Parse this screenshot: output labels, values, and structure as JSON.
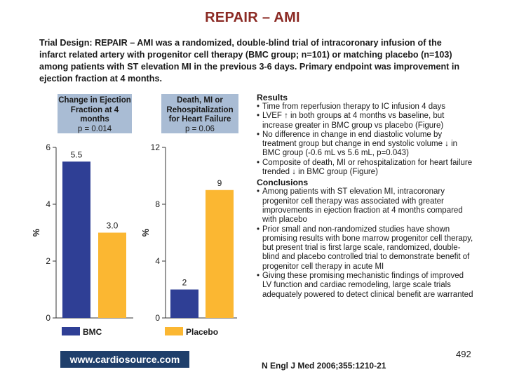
{
  "title": "REPAIR – AMI",
  "trial_design": "Trial Design: REPAIR – AMI was a randomized, double-blind trial of intracoronary infusion of the infarct related artery with progenitor cell therapy (BMC group; n=101) or matching placebo (n=103) among patients with ST elevation MI in the previous 3-6 days. Primary endpoint was improvement in ejection fraction at 4 months.",
  "panels": [
    {
      "heading": "Change in Ejection Fraction at 4 months",
      "pvalue": "p = 0.014"
    },
    {
      "heading": "Death, MI or Rehospitalization for Heart Failure",
      "pvalue": "p = 0.06"
    }
  ],
  "legend": {
    "bmc": "BMC",
    "placebo": "Placebo"
  },
  "colors": {
    "bmc": "#2f3f95",
    "placebo": "#fbb732",
    "panel_header": "#a9bcd4",
    "title": "#8b2a24"
  },
  "chart_data": [
    {
      "type": "bar",
      "title": "Change in Ejection Fraction at 4 months",
      "subtitle": "p = 0.014",
      "categories": [
        "BMC",
        "Placebo"
      ],
      "values": [
        5.5,
        3.0
      ],
      "value_labels": [
        "5.5",
        "3.0"
      ],
      "ylabel": "%",
      "ylim": [
        0,
        6
      ],
      "yticks": [
        "0",
        "2",
        "4",
        "6"
      ],
      "grid": false
    },
    {
      "type": "bar",
      "title": "Death, MI or Rehospitalization for Heart Failure",
      "subtitle": "p = 0.06",
      "categories": [
        "BMC",
        "Placebo"
      ],
      "values": [
        2,
        9
      ],
      "value_labels": [
        "2",
        "9"
      ],
      "ylabel": "%",
      "ylim": [
        0,
        12
      ],
      "yticks": [
        "0",
        "4",
        "8",
        "12"
      ],
      "grid": false
    }
  ],
  "results": {
    "heading": "Results",
    "items": [
      "Time from reperfusion therapy to IC infusion 4 days",
      "LVEF ↑ in both groups at 4 months vs baseline, but increase greater in BMC group vs placebo (Figure)",
      "No difference in change in end diastolic volume by treatment group but change in end systolic volume ↓ in BMC group (-0.6 mL vs 5.6 mL, p=0.043)",
      "Composite of death, MI or rehospitalization for heart failure trended ↓ in BMC group (Figure)"
    ]
  },
  "conclusions": {
    "heading": "Conclusions",
    "items": [
      "Among patients with ST elevation MI, intracoronary progenitor cell therapy was associated with greater improvements in ejection fraction at 4 months compared with placebo",
      "Prior small and non-randomized studies have shown promising results with bone marrow progenitor cell therapy, but present trial is first large scale, randomized, double-blind and placebo controlled trial to demonstrate benefit of progenitor cell therapy in acute MI",
      "Giving these promising mechanistic findings of improved LV function and cardiac remodeling, large scale trials adequately powered to detect clinical benefit are warranted"
    ]
  },
  "logo_text": "www.cardiosource.com",
  "citation": "N Engl J Med 2006;355:1210-21",
  "page_number": "492"
}
